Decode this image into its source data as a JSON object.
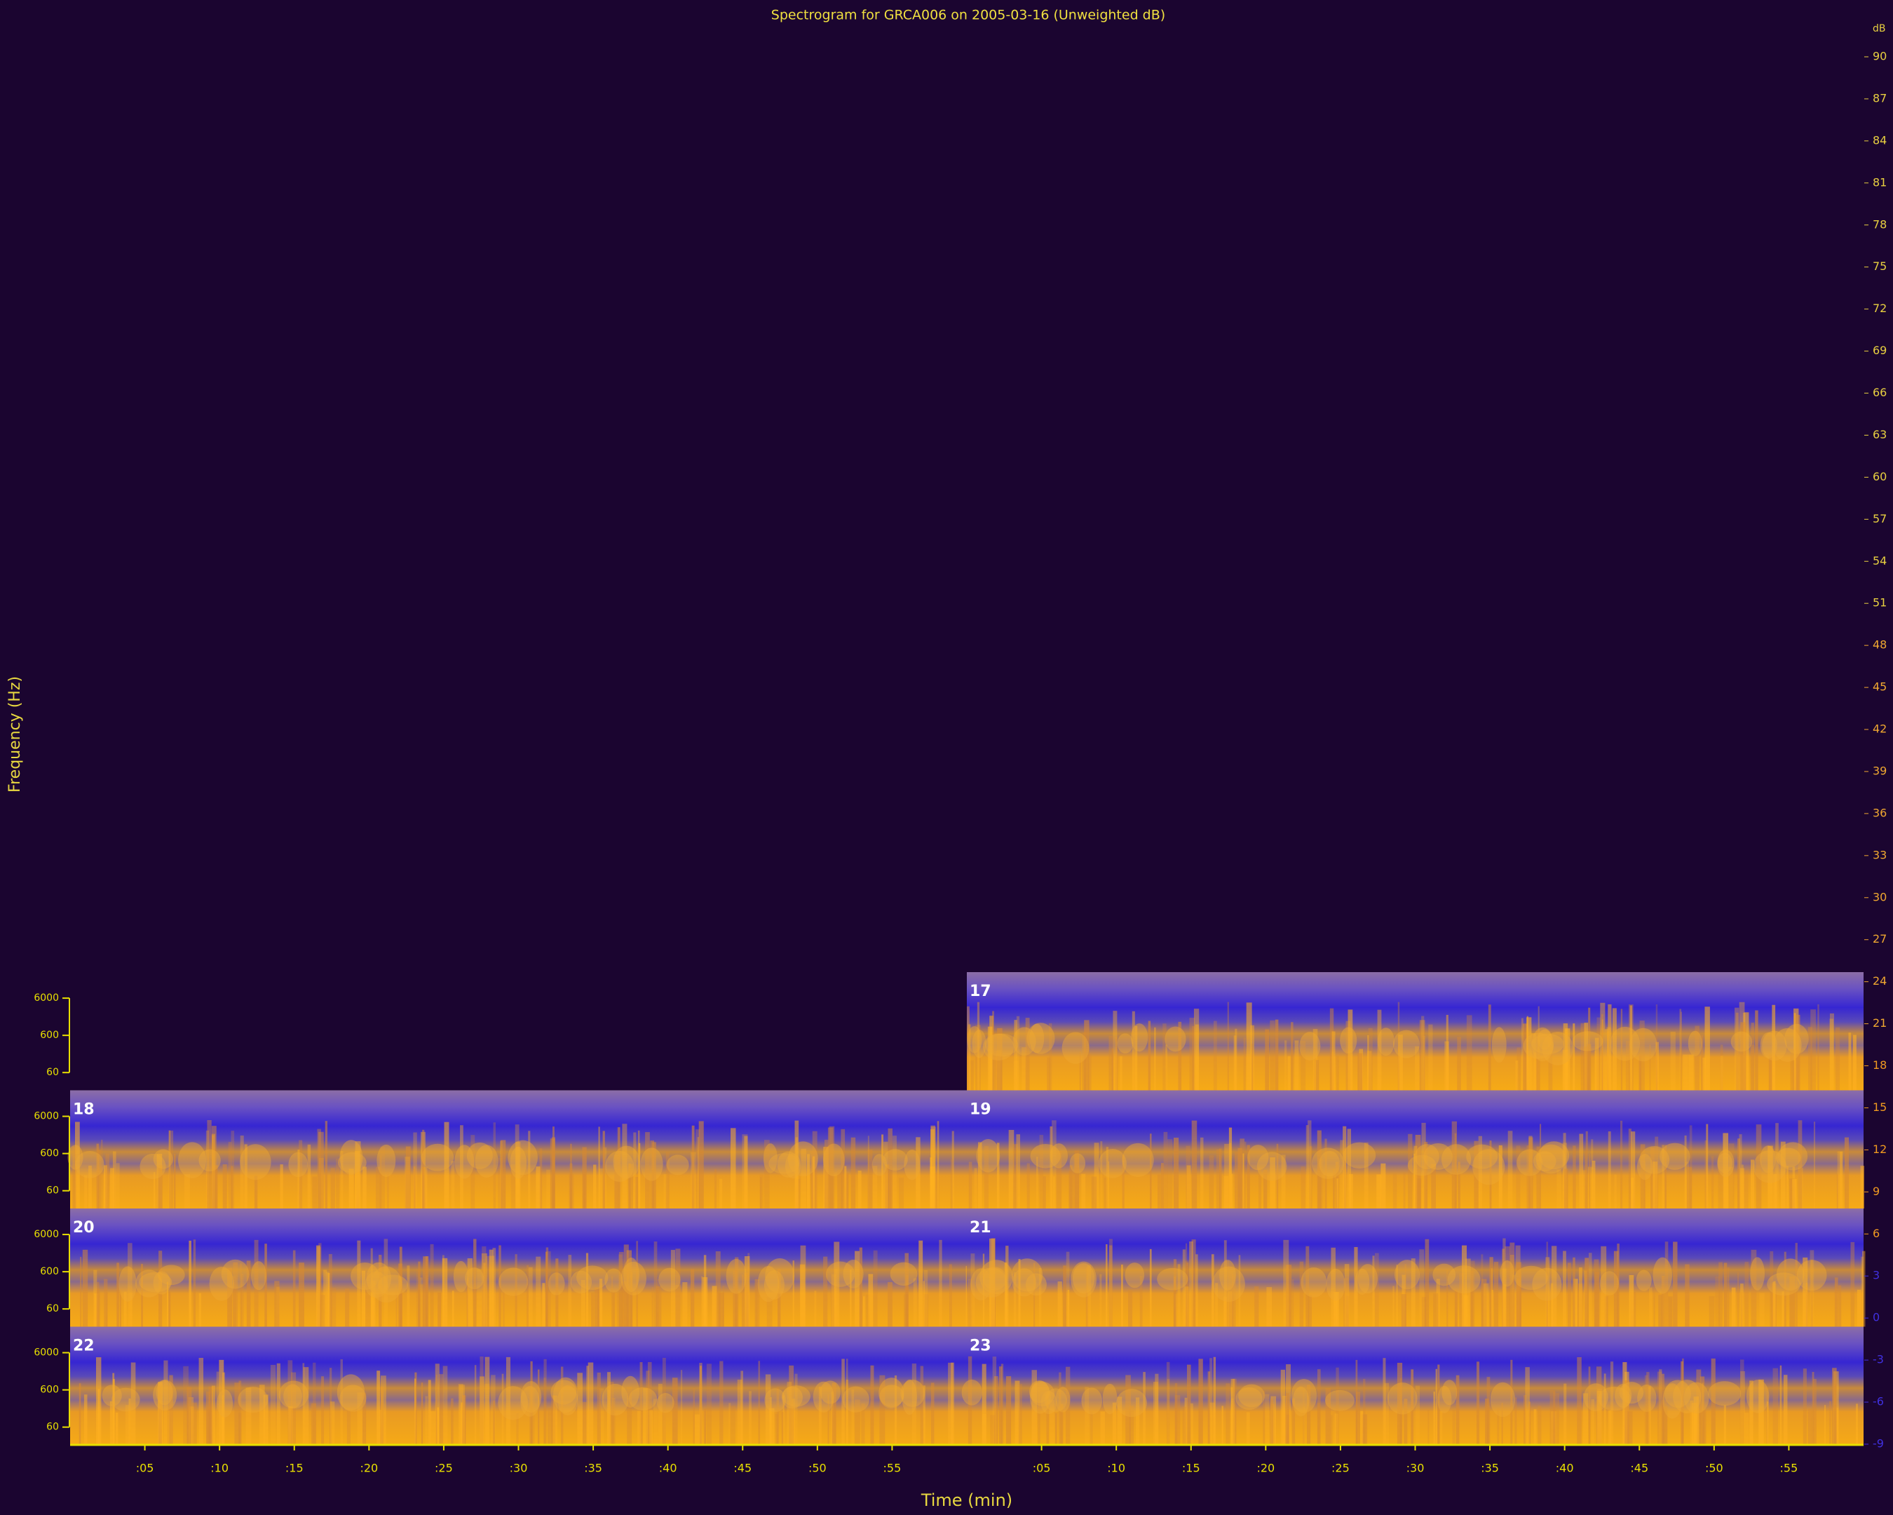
{
  "chart_data": {
    "type": "spectrogram",
    "title": "Spectrogram for GRCA006 on 2005-03-16 (Unweighted dB)",
    "xlabel": "Time (min)",
    "ylabel": "Frequency (Hz)",
    "xlim": [
      0,
      60
    ],
    "xticks": [
      {
        "value": 5,
        "label": ":05"
      },
      {
        "value": 10,
        "label": ":10"
      },
      {
        "value": 15,
        "label": ":15"
      },
      {
        "value": 20,
        "label": ":20"
      },
      {
        "value": 25,
        "label": ":25"
      },
      {
        "value": 30,
        "label": ":30"
      },
      {
        "value": 35,
        "label": ":35"
      },
      {
        "value": 40,
        "label": ":40"
      },
      {
        "value": 45,
        "label": ":45"
      },
      {
        "value": 50,
        "label": ":50"
      },
      {
        "value": 55,
        "label": ":55"
      }
    ],
    "ylim": [
      20,
      30000
    ],
    "yticks": [
      60,
      600,
      6000
    ],
    "log_y": true,
    "panels": [
      {
        "label": "17"
      },
      {
        "label": "18"
      },
      {
        "label": "19"
      },
      {
        "label": "20"
      },
      {
        "label": "21"
      },
      {
        "label": "22"
      },
      {
        "label": "23"
      }
    ],
    "colorbar": {
      "label": "dB",
      "lim": [
        -9,
        90
      ],
      "ticks": [
        90,
        87,
        84,
        81,
        78,
        75,
        72,
        69,
        66,
        63,
        60,
        57,
        54,
        51,
        48,
        45,
        42,
        39,
        36,
        33,
        30,
        27,
        24,
        21,
        18,
        15,
        12,
        9,
        6,
        3,
        0,
        -3,
        -6,
        -9
      ]
    }
  }
}
